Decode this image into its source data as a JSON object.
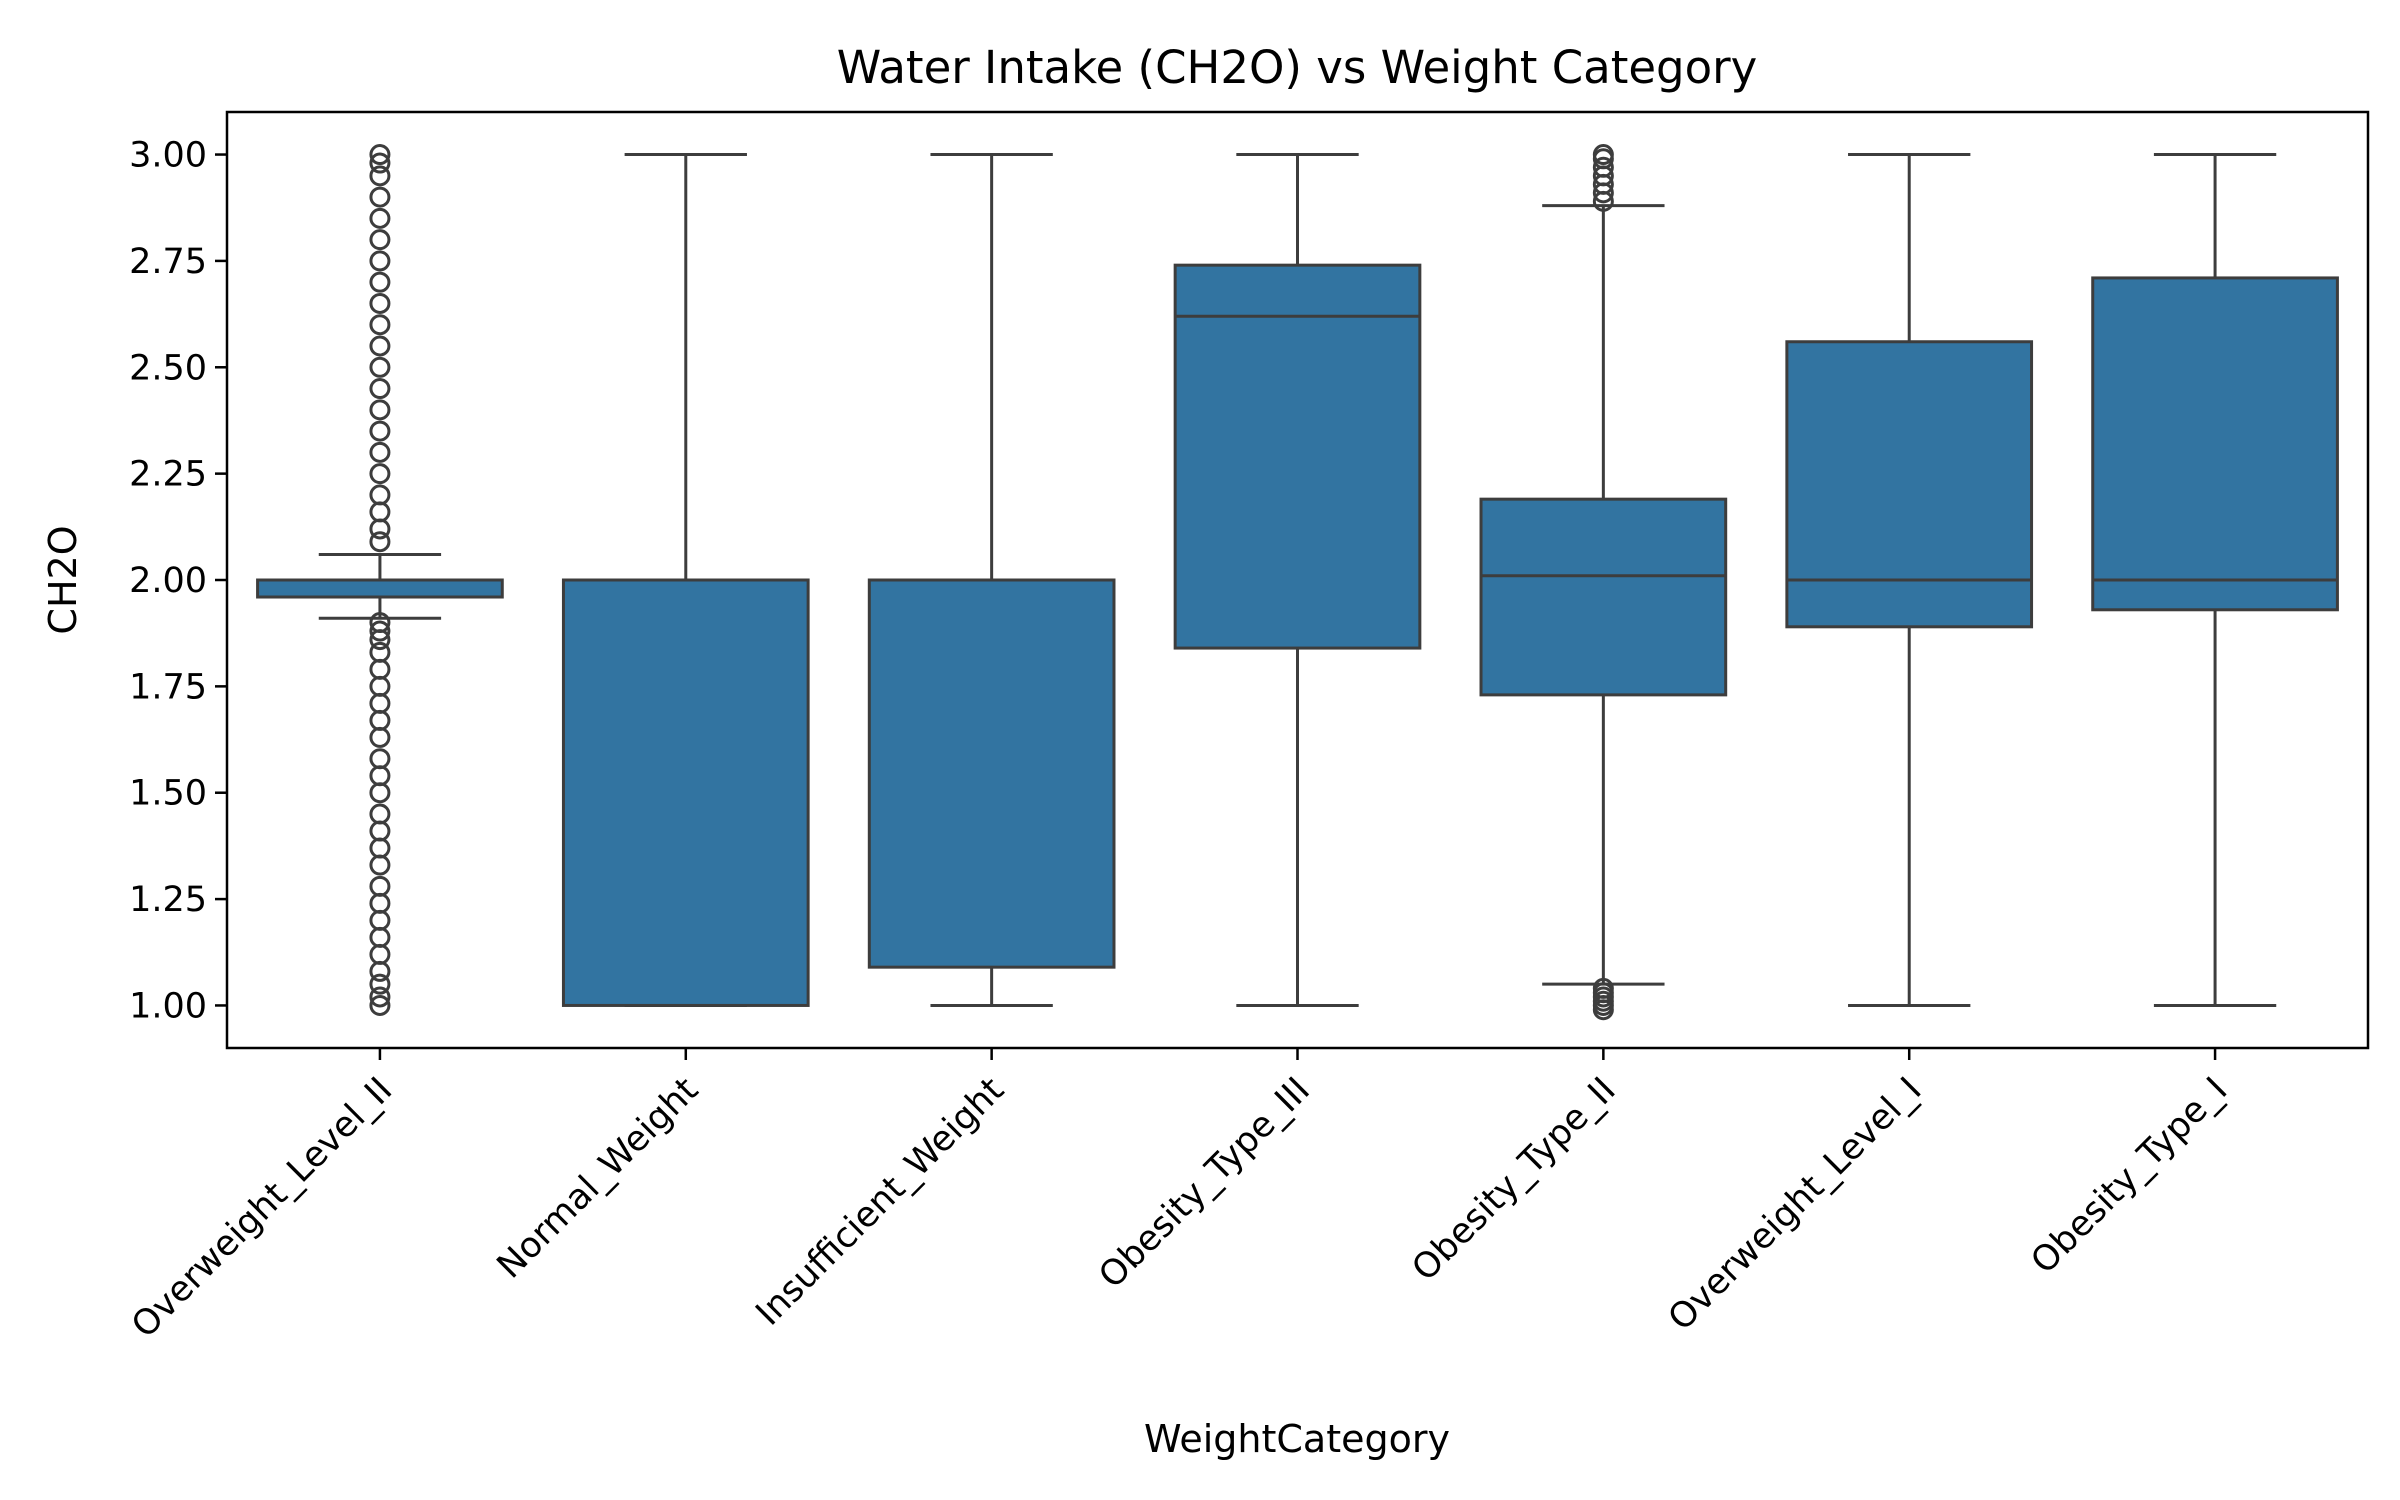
{
  "chart_data": {
    "type": "box",
    "title": "Water Intake (CH2O) vs Weight Category",
    "xlabel": "WeightCategory",
    "ylabel": "CH2O",
    "ylim": [
      0.9,
      3.1
    ],
    "yticks": [
      1.0,
      1.25,
      1.5,
      1.75,
      2.0,
      2.25,
      2.5,
      2.75,
      3.0
    ],
    "ytick_labels": [
      "1.00",
      "1.25",
      "1.50",
      "1.75",
      "2.00",
      "2.25",
      "2.50",
      "2.75",
      "3.00"
    ],
    "grid": false,
    "box_color": "#3274a1",
    "line_color": "#3d3d3d",
    "categories": [
      "Overweight_Level_II",
      "Normal_Weight",
      "Insufficient_Weight",
      "Obesity_Type_III",
      "Obesity_Type_II",
      "Overweight_Level_I",
      "Obesity_Type_I"
    ],
    "boxes": [
      {
        "category": "Overweight_Level_II",
        "whisker_low": 1.91,
        "q1": 1.96,
        "median": 2.0,
        "q3": 2.0,
        "whisker_high": 2.06,
        "outliers": [
          1.0,
          1.02,
          1.05,
          1.08,
          1.12,
          1.16,
          1.2,
          1.24,
          1.28,
          1.33,
          1.37,
          1.41,
          1.45,
          1.5,
          1.54,
          1.58,
          1.63,
          1.67,
          1.71,
          1.75,
          1.79,
          1.83,
          1.86,
          1.88,
          1.9,
          2.09,
          2.12,
          2.16,
          2.2,
          2.25,
          2.3,
          2.35,
          2.4,
          2.45,
          2.5,
          2.55,
          2.6,
          2.65,
          2.7,
          2.75,
          2.8,
          2.85,
          2.9,
          2.95,
          2.98,
          3.0
        ]
      },
      {
        "category": "Normal_Weight",
        "whisker_low": 1.0,
        "q1": 1.0,
        "median": 2.0,
        "q3": 2.0,
        "whisker_high": 3.0,
        "outliers": []
      },
      {
        "category": "Insufficient_Weight",
        "whisker_low": 1.0,
        "q1": 1.09,
        "median": 2.0,
        "q3": 2.0,
        "whisker_high": 3.0,
        "outliers": []
      },
      {
        "category": "Obesity_Type_III",
        "whisker_low": 1.0,
        "q1": 1.84,
        "median": 2.62,
        "q3": 2.74,
        "whisker_high": 3.0,
        "outliers": []
      },
      {
        "category": "Obesity_Type_II",
        "whisker_low": 1.05,
        "q1": 1.73,
        "median": 2.01,
        "q3": 2.19,
        "whisker_high": 2.88,
        "outliers": [
          0.99,
          1.0,
          1.01,
          1.02,
          1.03,
          1.04,
          2.89,
          2.91,
          2.93,
          2.95,
          2.97,
          2.99,
          3.0
        ]
      },
      {
        "category": "Overweight_Level_I",
        "whisker_low": 1.0,
        "q1": 1.89,
        "median": 2.0,
        "q3": 2.56,
        "whisker_high": 3.0,
        "outliers": []
      },
      {
        "category": "Obesity_Type_I",
        "whisker_low": 1.0,
        "q1": 1.93,
        "median": 2.0,
        "q3": 2.71,
        "whisker_high": 3.0,
        "outliers": []
      }
    ]
  }
}
